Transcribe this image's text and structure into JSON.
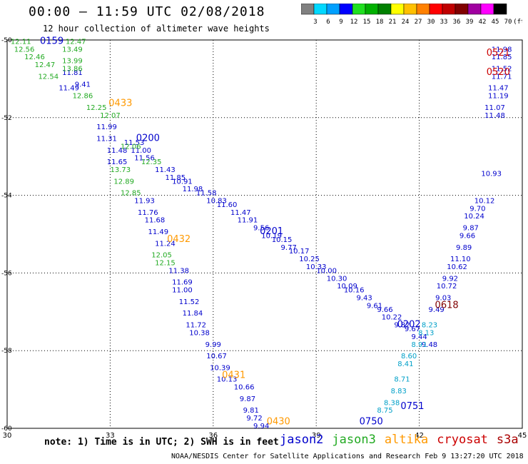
{
  "header": {
    "title": "00:00 — 11:59 UTC 02/08/2018",
    "subtitle": "12 hour collection of altimeter wave heights"
  },
  "colorbar": {
    "labels": [
      "3",
      "6",
      "9",
      "12",
      "15",
      "18",
      "21",
      "24",
      "27",
      "30",
      "33",
      "36",
      "39",
      "42",
      "45",
      "70",
      "(ft)"
    ],
    "colors": [
      "#808080",
      "#00d8ff",
      "#00a0ff",
      "#0000ff",
      "#20e020",
      "#00b000",
      "#008000",
      "#ffff00",
      "#ffc000",
      "#ff8000",
      "#ff0000",
      "#c00000",
      "#800000",
      "#a000a0",
      "#ff00ff",
      "#000000"
    ]
  },
  "footer": {
    "note": "note: 1) Time is in UTC; 2) SWH is in feet",
    "credit": "NOAA/NESDIS Center for Satellite Applications and Research   Feb  9 13:27:20 UTC 2018"
  },
  "legend": [
    {
      "name": "jason2",
      "color": "#0000cc"
    },
    {
      "name": "jason3",
      "color": "#22aa22"
    },
    {
      "name": "altika",
      "color": "#ff9900"
    },
    {
      "name": "cryosat",
      "color": "#cc0000"
    },
    {
      "name": "s3a",
      "color": "#aa0000"
    }
  ],
  "chart_data": {
    "type": "scatter",
    "xlim": [
      30,
      45
    ],
    "ylim": [
      -60,
      -50
    ],
    "xticks": [
      "30",
      "33",
      "36",
      "39",
      "42",
      "45"
    ],
    "yticks": [
      "-50",
      "-52",
      "-54",
      "-56",
      "-58",
      "-60"
    ],
    "grid": true,
    "time_labels": [
      {
        "text": "0159",
        "x": 31.3,
        "y": -50.1,
        "color": "#0000cc"
      },
      {
        "text": "0433",
        "x": 33.3,
        "y": -51.7,
        "color": "#ff9900"
      },
      {
        "text": "0200",
        "x": 34.1,
        "y": -52.6,
        "color": "#0000cc"
      },
      {
        "text": "0432",
        "x": 35.0,
        "y": -55.2,
        "color": "#ff9900"
      },
      {
        "text": "0201",
        "x": 37.7,
        "y": -55.0,
        "color": "#0000cc"
      },
      {
        "text": "0431",
        "x": 36.6,
        "y": -58.7,
        "color": "#ff9900"
      },
      {
        "text": "0430",
        "x": 37.9,
        "y": -59.9,
        "color": "#ff9900"
      },
      {
        "text": "0202",
        "x": 41.7,
        "y": -57.4,
        "color": "#0000cc"
      },
      {
        "text": "0618",
        "x": 42.8,
        "y": -56.9,
        "color": "#800000"
      },
      {
        "text": "0750",
        "x": 40.6,
        "y": -59.9,
        "color": "#0000cc"
      },
      {
        "text": "0751",
        "x": 41.8,
        "y": -59.5,
        "color": "#0000cc"
      },
      {
        "text": "0521",
        "x": 44.3,
        "y": -50.4,
        "color": "#cc0000"
      },
      {
        "text": "0520",
        "x": 44.3,
        "y": -50.9,
        "color": "#cc0000"
      }
    ],
    "tracks": [
      {
        "name": "jason2 0159-0202",
        "color": "#0000cc",
        "points": [
          {
            "x": 31.9,
            "y": -50.9,
            "v": "11.81"
          },
          {
            "x": 32.2,
            "y": -51.2,
            "v": "9.41"
          },
          {
            "x": 31.8,
            "y": -51.3,
            "v": "11.49"
          },
          {
            "x": 32.9,
            "y": -52.3,
            "v": "11.99"
          },
          {
            "x": 32.9,
            "y": -52.6,
            "v": "11.31"
          },
          {
            "x": 33.7,
            "y": -52.7,
            "v": "11.53"
          },
          {
            "x": 33.2,
            "y": -52.9,
            "v": "11.48"
          },
          {
            "x": 33.9,
            "y": -52.9,
            "v": "11.00"
          },
          {
            "x": 34.0,
            "y": -53.1,
            "v": "11.56"
          },
          {
            "x": 33.2,
            "y": -53.2,
            "v": "11.65"
          },
          {
            "x": 34.6,
            "y": -53.4,
            "v": "11.43"
          },
          {
            "x": 34.9,
            "y": -53.6,
            "v": "11.85"
          },
          {
            "x": 35.1,
            "y": -53.7,
            "v": "10.91"
          },
          {
            "x": 35.4,
            "y": -53.9,
            "v": "11.98"
          },
          {
            "x": 35.8,
            "y": -54.0,
            "v": "11.58"
          },
          {
            "x": 36.1,
            "y": -54.2,
            "v": "10.83"
          },
          {
            "x": 36.4,
            "y": -54.3,
            "v": "11.60"
          },
          {
            "x": 36.8,
            "y": -54.5,
            "v": "11.47"
          },
          {
            "x": 37.0,
            "y": -54.7,
            "v": "11.91"
          },
          {
            "x": 37.4,
            "y": -54.9,
            "v": "9.56"
          },
          {
            "x": 37.7,
            "y": -55.1,
            "v": "10.19"
          },
          {
            "x": 38.0,
            "y": -55.2,
            "v": "10.15"
          },
          {
            "x": 38.2,
            "y": -55.4,
            "v": "9.77"
          },
          {
            "x": 38.5,
            "y": -55.5,
            "v": "10.17"
          },
          {
            "x": 38.8,
            "y": -55.7,
            "v": "10.25"
          },
          {
            "x": 39.0,
            "y": -55.9,
            "v": "10.33"
          },
          {
            "x": 39.3,
            "y": -56.0,
            "v": "10.00"
          },
          {
            "x": 39.6,
            "y": -56.2,
            "v": "10.30"
          },
          {
            "x": 39.9,
            "y": -56.4,
            "v": "10.09"
          },
          {
            "x": 40.1,
            "y": -56.5,
            "v": "10.16"
          },
          {
            "x": 40.4,
            "y": -56.7,
            "v": "9.43"
          },
          {
            "x": 40.7,
            "y": -56.9,
            "v": "9.61"
          },
          {
            "x": 41.0,
            "y": -57.0,
            "v": "9.66"
          },
          {
            "x": 41.2,
            "y": -57.2,
            "v": "10.22"
          },
          {
            "x": 41.5,
            "y": -57.4,
            "v": "9.82"
          },
          {
            "x": 41.8,
            "y": -57.5,
            "v": "9.67"
          },
          {
            "x": 42.0,
            "y": -57.7,
            "v": "9.44"
          },
          {
            "x": 42.3,
            "y": -57.9,
            "v": "9.48"
          }
        ]
      },
      {
        "name": "jason2 east",
        "color": "#0000cc",
        "points": [
          {
            "x": 44.4,
            "y": -50.3,
            "v": "11.98"
          },
          {
            "x": 44.4,
            "y": -50.5,
            "v": "11.85"
          },
          {
            "x": 44.4,
            "y": -50.8,
            "v": "11.52"
          },
          {
            "x": 44.4,
            "y": -51.0,
            "v": "11.71"
          },
          {
            "x": 44.3,
            "y": -51.3,
            "v": "11.47"
          },
          {
            "x": 44.3,
            "y": -51.5,
            "v": "11.19"
          },
          {
            "x": 44.2,
            "y": -51.8,
            "v": "11.07"
          },
          {
            "x": 44.2,
            "y": -52.0,
            "v": "11.48"
          },
          {
            "x": 44.1,
            "y": -53.5,
            "v": "10.93"
          },
          {
            "x": 43.9,
            "y": -54.2,
            "v": "10.12"
          },
          {
            "x": 43.7,
            "y": -54.4,
            "v": "9.70"
          },
          {
            "x": 43.6,
            "y": -54.6,
            "v": "10.24"
          },
          {
            "x": 43.5,
            "y": -54.9,
            "v": "9.87"
          },
          {
            "x": 43.4,
            "y": -55.1,
            "v": "9.66"
          },
          {
            "x": 43.3,
            "y": -55.4,
            "v": "9.89"
          },
          {
            "x": 43.2,
            "y": -55.7,
            "v": "11.10"
          },
          {
            "x": 43.1,
            "y": -55.9,
            "v": "10.62"
          },
          {
            "x": 42.9,
            "y": -56.2,
            "v": "9.92"
          },
          {
            "x": 42.8,
            "y": -56.4,
            "v": "10.72"
          },
          {
            "x": 42.7,
            "y": -56.7,
            "v": "9.03"
          },
          {
            "x": 42.5,
            "y": -57.0,
            "v": "9.49"
          }
        ]
      },
      {
        "name": "jason2 0432 track",
        "color": "#0000cc",
        "points": [
          {
            "x": 34.0,
            "y": -54.2,
            "v": "11.93"
          },
          {
            "x": 34.1,
            "y": -54.5,
            "v": "11.76"
          },
          {
            "x": 34.3,
            "y": -54.7,
            "v": "11.68"
          },
          {
            "x": 34.4,
            "y": -55.0,
            "v": "11.49"
          },
          {
            "x": 34.6,
            "y": -55.3,
            "v": "11.24"
          },
          {
            "x": 35.0,
            "y": -56.0,
            "v": "11.38"
          },
          {
            "x": 35.1,
            "y": -56.3,
            "v": "11.69"
          },
          {
            "x": 35.1,
            "y": -56.5,
            "v": "11.00"
          },
          {
            "x": 35.3,
            "y": -56.8,
            "v": "11.52"
          },
          {
            "x": 35.4,
            "y": -57.1,
            "v": "11.84"
          },
          {
            "x": 35.5,
            "y": -57.4,
            "v": "11.72"
          },
          {
            "x": 35.6,
            "y": -57.6,
            "v": "10.38"
          },
          {
            "x": 36.0,
            "y": -57.9,
            "v": "9.99"
          },
          {
            "x": 36.1,
            "y": -58.2,
            "v": "10.67"
          },
          {
            "x": 36.2,
            "y": -58.5,
            "v": "10.39"
          },
          {
            "x": 36.4,
            "y": -58.8,
            "v": "10.13"
          },
          {
            "x": 36.9,
            "y": -59.0,
            "v": "10.66"
          },
          {
            "x": 37.0,
            "y": -59.3,
            "v": "9.87"
          },
          {
            "x": 37.1,
            "y": -59.6,
            "v": "9.81"
          },
          {
            "x": 37.2,
            "y": -59.8,
            "v": "9.72"
          },
          {
            "x": 37.4,
            "y": -60.0,
            "v": "9.94"
          }
        ]
      },
      {
        "name": "jason3 0433",
        "color": "#22aa22",
        "points": [
          {
            "x": 32.0,
            "y": -50.1,
            "v": "12.47"
          },
          {
            "x": 31.9,
            "y": -50.3,
            "v": "13.49"
          },
          {
            "x": 31.9,
            "y": -50.6,
            "v": "13.99"
          },
          {
            "x": 31.9,
            "y": -50.8,
            "v": "13.86"
          },
          {
            "x": 32.2,
            "y": -51.5,
            "v": "12.86"
          },
          {
            "x": 32.6,
            "y": -51.8,
            "v": "12.25"
          },
          {
            "x": 33.0,
            "y": -52.0,
            "v": "12.07"
          },
          {
            "x": 33.6,
            "y": -52.8,
            "v": "12.06"
          },
          {
            "x": 34.2,
            "y": -53.2,
            "v": "12.35"
          },
          {
            "x": 33.3,
            "y": -53.4,
            "v": "13.73"
          },
          {
            "x": 33.4,
            "y": -53.7,
            "v": "12.89"
          },
          {
            "x": 33.6,
            "y": -54.0,
            "v": "12.85"
          },
          {
            "x": 34.5,
            "y": -55.6,
            "v": "12.05"
          },
          {
            "x": 34.6,
            "y": -55.8,
            "v": "12.15"
          }
        ]
      },
      {
        "name": "jason3 west",
        "color": "#22aa22",
        "points": [
          {
            "x": 30.4,
            "y": -50.1,
            "v": "12.11"
          },
          {
            "x": 30.5,
            "y": -50.3,
            "v": "12.56"
          },
          {
            "x": 30.8,
            "y": -50.5,
            "v": "12.46"
          },
          {
            "x": 31.1,
            "y": -50.7,
            "v": "12.47"
          },
          {
            "x": 31.2,
            "y": -51.0,
            "v": "12.54"
          }
        ]
      },
      {
        "name": "altika 0750",
        "color": "#00a0c8",
        "points": [
          {
            "x": 42.3,
            "y": -57.4,
            "v": "8.23"
          },
          {
            "x": 42.2,
            "y": -57.6,
            "v": "8.13"
          },
          {
            "x": 42.0,
            "y": -57.9,
            "v": "8.91"
          },
          {
            "x": 41.7,
            "y": -58.2,
            "v": "8.60"
          },
          {
            "x": 41.6,
            "y": -58.4,
            "v": "8.41"
          },
          {
            "x": 41.5,
            "y": -58.8,
            "v": "8.71"
          },
          {
            "x": 41.4,
            "y": -59.1,
            "v": "8.83"
          },
          {
            "x": 41.2,
            "y": -59.4,
            "v": "8.38"
          },
          {
            "x": 41.0,
            "y": -59.6,
            "v": "8.75"
          }
        ]
      }
    ]
  }
}
